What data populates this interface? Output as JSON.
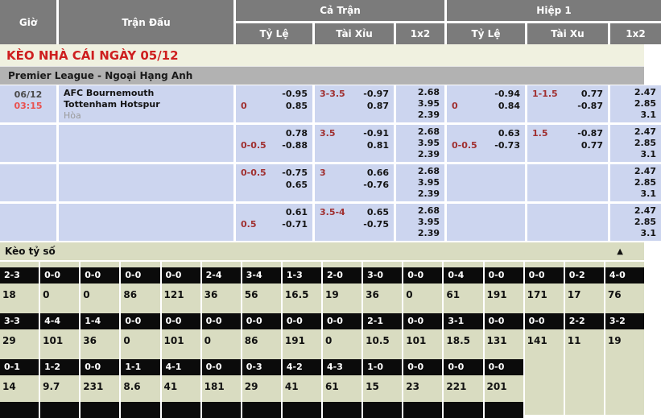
{
  "colors": {
    "header_gray": "#7b7b7b",
    "banner_bg": "#f0f1e0",
    "banner_red": "#ce1f1f",
    "league_gray": "#b2b2b2",
    "odds_row_blue": "#ccd5ef",
    "handicap_red": "#a03030",
    "time_red": "#e9514f",
    "score_bg_green": "#d9dcc1",
    "score_box_black": "#0b0b0b"
  },
  "header": {
    "gio": "Giờ",
    "tran_dau": "Trận Đấu",
    "ca_tran": "Cả Trận",
    "hiep_1": "Hiệp 1",
    "ft_ty_le": "Tỷ Lệ",
    "ft_tai_xiu": "Tài Xỉu",
    "ft_1x2": "1x2",
    "h1_ty_le": "Tỷ Lệ",
    "h1_tai_xu": "Tài Xu",
    "h1_1x2": "1x2"
  },
  "banner": {
    "title": "KÈO NHÀ CÁI NGÀY 05/12"
  },
  "league": {
    "name": "Premier League - Ngoại Hạng Anh"
  },
  "odds_rows": [
    {
      "gio": {
        "date": "06/12",
        "time": "03:15"
      },
      "match": {
        "home": "AFC Bournemouth",
        "away": "Tottenham Hotspur",
        "extra": "Hòa"
      },
      "ft_hc": {
        "l1": "",
        "r1": "-0.95",
        "l2": "0",
        "r2": "0.85"
      },
      "ft_ou": {
        "l1": "3-3.5",
        "r1": "-0.97",
        "l2": "",
        "r2": "0.87"
      },
      "ft_1x2": {
        "a": "2.68",
        "b": "3.95",
        "c": "2.39"
      },
      "h1_hc": {
        "l1": "",
        "r1": "-0.94",
        "l2": "0",
        "r2": "0.84"
      },
      "h1_ou": {
        "l1": "1-1.5",
        "r1": "0.77",
        "l2": "",
        "r2": "-0.87"
      },
      "h1_1x2": {
        "a": "2.47",
        "b": "2.85",
        "c": "3.1"
      }
    },
    {
      "gio": {
        "date": "",
        "time": ""
      },
      "match": {
        "home": "",
        "away": "",
        "extra": ""
      },
      "ft_hc": {
        "l1": "",
        "r1": "0.78",
        "l2": "0-0.5",
        "r2": "-0.88"
      },
      "ft_ou": {
        "l1": "3.5",
        "r1": "-0.91",
        "l2": "",
        "r2": "0.81"
      },
      "ft_1x2": {
        "a": "2.68",
        "b": "3.95",
        "c": "2.39"
      },
      "h1_hc": {
        "l1": "",
        "r1": "0.63",
        "l2": "0-0.5",
        "r2": "-0.73"
      },
      "h1_ou": {
        "l1": "1.5",
        "r1": "-0.87",
        "l2": "",
        "r2": "0.77"
      },
      "h1_1x2": {
        "a": "2.47",
        "b": "2.85",
        "c": "3.1"
      }
    },
    {
      "gio": {
        "date": "",
        "time": ""
      },
      "match": {
        "home": "",
        "away": "",
        "extra": ""
      },
      "ft_hc": {
        "l1": "0-0.5",
        "r1": "-0.75",
        "l2": "",
        "r2": "0.65"
      },
      "ft_ou": {
        "l1": "3",
        "r1": "0.66",
        "l2": "",
        "r2": "-0.76"
      },
      "ft_1x2": {
        "a": "2.68",
        "b": "3.95",
        "c": "2.39"
      },
      "h1_hc": {
        "l1": "",
        "r1": "",
        "l2": "",
        "r2": ""
      },
      "h1_ou": {
        "l1": "",
        "r1": "",
        "l2": "",
        "r2": ""
      },
      "h1_1x2": {
        "a": "2.47",
        "b": "2.85",
        "c": "3.1"
      }
    },
    {
      "gio": {
        "date": "",
        "time": ""
      },
      "match": {
        "home": "",
        "away": "",
        "extra": ""
      },
      "ft_hc": {
        "l1": "",
        "r1": "0.61",
        "l2": "0.5",
        "r2": "-0.71"
      },
      "ft_ou": {
        "l1": "3.5-4",
        "r1": "0.65",
        "l2": "",
        "r2": "-0.75"
      },
      "ft_1x2": {
        "a": "2.68",
        "b": "3.95",
        "c": "2.39"
      },
      "h1_hc": {
        "l1": "",
        "r1": "",
        "l2": "",
        "r2": ""
      },
      "h1_ou": {
        "l1": "",
        "r1": "",
        "l2": "",
        "r2": ""
      },
      "h1_1x2": {
        "a": "2.47",
        "b": "2.85",
        "c": "3.1"
      }
    }
  ],
  "score_section": {
    "title": "Kèo tỷ số",
    "collapse_icon": "▲",
    "rows": [
      [
        {
          "s": "2-3",
          "v": "18"
        },
        {
          "s": "0-0",
          "v": "0"
        },
        {
          "s": "0-0",
          "v": "0"
        },
        {
          "s": "0-0",
          "v": "86"
        },
        {
          "s": "0-0",
          "v": "121"
        },
        {
          "s": "2-4",
          "v": "36"
        },
        {
          "s": "3-4",
          "v": "56"
        },
        {
          "s": "1-3",
          "v": "16.5"
        },
        {
          "s": "2-0",
          "v": "19"
        },
        {
          "s": "3-0",
          "v": "36"
        },
        {
          "s": "0-0",
          "v": "0"
        },
        {
          "s": "0-4",
          "v": "61"
        },
        {
          "s": "0-0",
          "v": "191"
        },
        {
          "s": "0-0",
          "v": "171"
        },
        {
          "s": "0-2",
          "v": "17"
        },
        {
          "s": "4-0",
          "v": "76"
        }
      ],
      [
        {
          "s": "3-3",
          "v": "29"
        },
        {
          "s": "4-4",
          "v": "101"
        },
        {
          "s": "1-4",
          "v": "36"
        },
        {
          "s": "0-0",
          "v": "0"
        },
        {
          "s": "0-0",
          "v": "101"
        },
        {
          "s": "0-0",
          "v": "0"
        },
        {
          "s": "0-0",
          "v": "86"
        },
        {
          "s": "0-0",
          "v": "191"
        },
        {
          "s": "0-0",
          "v": "0"
        },
        {
          "s": "2-1",
          "v": "10.5"
        },
        {
          "s": "0-0",
          "v": "101"
        },
        {
          "s": "3-1",
          "v": "18.5"
        },
        {
          "s": "0-0",
          "v": "131"
        },
        {
          "s": "0-0",
          "v": "141"
        },
        {
          "s": "2-2",
          "v": "11"
        },
        {
          "s": "3-2",
          "v": "19"
        }
      ],
      [
        {
          "s": "0-1",
          "v": "14"
        },
        {
          "s": "1-2",
          "v": "9.7"
        },
        {
          "s": "0-0",
          "v": "231"
        },
        {
          "s": "1-1",
          "v": "8.6"
        },
        {
          "s": "4-1",
          "v": "41"
        },
        {
          "s": "0-0",
          "v": "181"
        },
        {
          "s": "0-3",
          "v": "29"
        },
        {
          "s": "4-2",
          "v": "41"
        },
        {
          "s": "4-3",
          "v": "61"
        },
        {
          "s": "1-0",
          "v": "15"
        },
        {
          "s": "0-0",
          "v": "23"
        },
        {
          "s": "0-0",
          "v": "221"
        },
        {
          "s": "0-0",
          "v": "201"
        },
        {
          "s": "",
          "v": ""
        },
        {
          "s": "",
          "v": ""
        },
        {
          "s": "",
          "v": ""
        }
      ]
    ],
    "partial_row_cols": 13
  }
}
